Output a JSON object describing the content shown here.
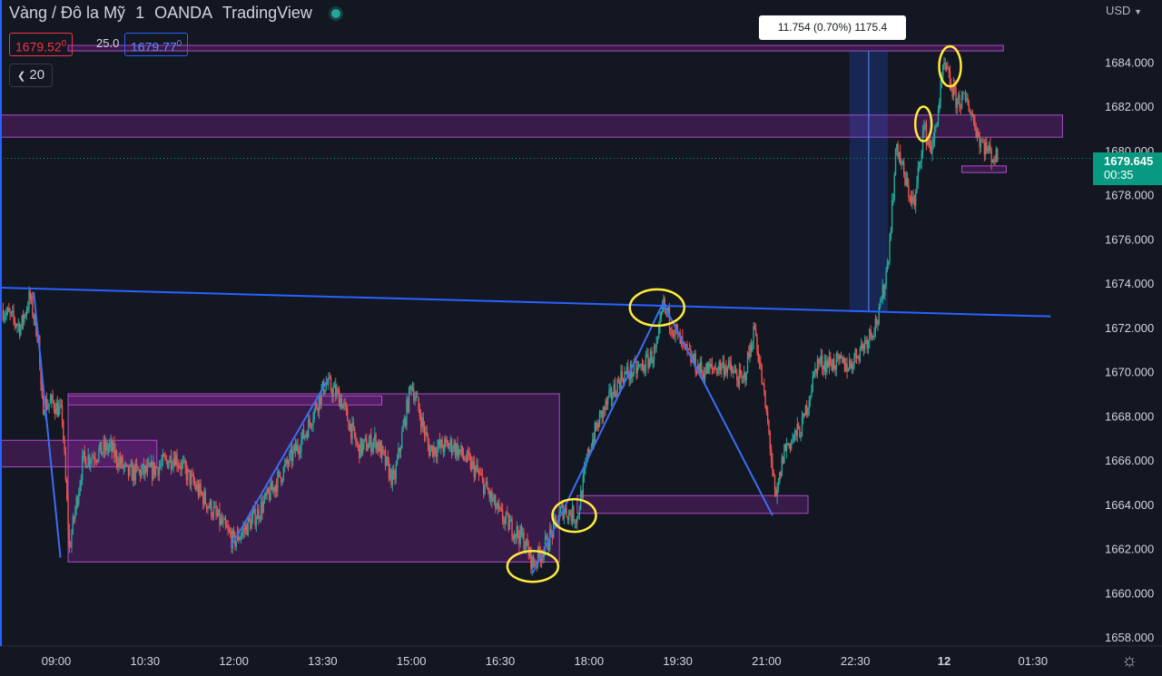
{
  "header": {
    "symbol": "Vàng / Đô la Mỹ",
    "interval": "1",
    "broker": "OANDA",
    "platform": "TradingView",
    "sell_price": "1679.52",
    "sell_sup": "0",
    "spread": "25.0",
    "buy_price": "1679.77",
    "buy_sup": "0",
    "indicator_count": "20"
  },
  "currency": "USD",
  "measure_label": "11.754 (0.70%) 1175.4",
  "last_price": {
    "price": "1679.645",
    "countdown": "00:35"
  },
  "colors": {
    "background": "#131722",
    "up": "#26a69a",
    "down": "#ef5350",
    "trendline": "#2962ff",
    "zone": "#9c27b0",
    "marker": "#ffeb3b",
    "last_price": "#089981"
  },
  "icons": [
    "live-status-icon",
    "settings-gear-icon"
  ],
  "chart_data": {
    "type": "candlestick",
    "ylim": [
      1657.6,
      1686.8
    ],
    "y_ticks": [
      1658,
      1660,
      1662,
      1664,
      1666,
      1668,
      1670,
      1672,
      1674,
      1676,
      1678,
      1680,
      1682,
      1684
    ],
    "y_tick_labels": [
      "1658.000",
      "1660.000",
      "1662.000",
      "1664.000",
      "1666.000",
      "1668.000",
      "1670.000",
      "1672.000",
      "1674.000",
      "1676.000",
      "1678.000",
      "1680.000",
      "1682.000",
      "1684.000"
    ],
    "x_ticks": [
      "09:00",
      "10:30",
      "12:00",
      "13:30",
      "15:00",
      "16:30",
      "18:00",
      "19:30",
      "21:00",
      "22:30",
      "12",
      "01:30"
    ],
    "x_tick_hours": [
      9,
      10.5,
      12,
      13.5,
      15,
      16.5,
      18,
      19.5,
      21,
      22.5,
      24,
      25.5
    ],
    "xlim_hours": [
      8.05,
      26.2
    ],
    "path": [
      [
        8.1,
        1672.8
      ],
      [
        8.4,
        1672.0
      ],
      [
        8.55,
        1673.4
      ],
      [
        8.7,
        1671.5
      ],
      [
        8.75,
        1668.5
      ],
      [
        8.95,
        1668.6
      ],
      [
        9.1,
        1668.0
      ],
      [
        9.22,
        1662.0
      ],
      [
        9.45,
        1666.0
      ],
      [
        9.9,
        1666.6
      ],
      [
        10.2,
        1665.4
      ],
      [
        10.6,
        1665.5
      ],
      [
        11.0,
        1666.2
      ],
      [
        11.3,
        1665.0
      ],
      [
        11.7,
        1663.5
      ],
      [
        12.0,
        1662.3
      ],
      [
        12.4,
        1663.6
      ],
      [
        12.9,
        1665.8
      ],
      [
        13.2,
        1667.2
      ],
      [
        13.55,
        1669.5
      ],
      [
        13.8,
        1668.8
      ],
      [
        14.1,
        1666.5
      ],
      [
        14.4,
        1666.9
      ],
      [
        14.7,
        1665.0
      ],
      [
        15.0,
        1669.5
      ],
      [
        15.3,
        1666.5
      ],
      [
        15.7,
        1666.7
      ],
      [
        16.1,
        1665.5
      ],
      [
        16.5,
        1663.5
      ],
      [
        16.9,
        1662.4
      ],
      [
        17.05,
        1661.3
      ],
      [
        17.3,
        1662.3
      ],
      [
        17.55,
        1663.8
      ],
      [
        17.8,
        1663.4
      ],
      [
        18.0,
        1666.5
      ],
      [
        18.2,
        1668.0
      ],
      [
        18.55,
        1669.8
      ],
      [
        18.9,
        1670.2
      ],
      [
        19.15,
        1671.0
      ],
      [
        19.25,
        1673.0
      ],
      [
        19.6,
        1671.0
      ],
      [
        19.9,
        1670.0
      ],
      [
        20.3,
        1670.3
      ],
      [
        20.6,
        1669.5
      ],
      [
        20.8,
        1672.0
      ],
      [
        20.95,
        1669.0
      ],
      [
        21.05,
        1667.0
      ],
      [
        21.15,
        1664.0
      ],
      [
        21.3,
        1666.5
      ],
      [
        21.6,
        1667.5
      ],
      [
        21.85,
        1670.4
      ],
      [
        22.1,
        1670.4
      ],
      [
        22.4,
        1670.3
      ],
      [
        22.7,
        1671.5
      ],
      [
        22.9,
        1672.5
      ],
      [
        23.05,
        1675.0
      ],
      [
        23.2,
        1680.3
      ],
      [
        23.35,
        1678.5
      ],
      [
        23.5,
        1677.5
      ],
      [
        23.65,
        1681.0
      ],
      [
        23.8,
        1680.0
      ],
      [
        24.0,
        1683.8
      ],
      [
        24.2,
        1682.3
      ],
      [
        24.4,
        1682.2
      ],
      [
        24.6,
        1680.5
      ],
      [
        24.8,
        1679.8
      ],
      [
        24.9,
        1679.6
      ]
    ],
    "trendline_levels": [
      [
        8.05,
        1673.8
      ],
      [
        25.8,
        1672.5
      ]
    ],
    "swing_lines": [
      [
        [
          8.62,
          1673.6
        ],
        [
          9.07,
          1661.6
        ]
      ],
      [
        [
          11.95,
          1662.1
        ],
        [
          13.6,
          1669.7
        ]
      ],
      [
        [
          17.05,
          1660.9
        ],
        [
          19.25,
          1673.1
        ]
      ],
      [
        [
          19.25,
          1673.1
        ],
        [
          21.1,
          1663.5
        ]
      ]
    ],
    "zones": [
      [
        9.2,
        17.5,
        1661.4,
        1669.0
      ],
      [
        8.05,
        10.7,
        1665.7,
        1666.9
      ],
      [
        9.2,
        14.5,
        1668.5,
        1668.9
      ],
      [
        17.8,
        21.7,
        1663.6,
        1664.4
      ],
      [
        8.05,
        26.0,
        1680.6,
        1681.6
      ],
      [
        9.2,
        25.0,
        1684.5,
        1684.75
      ],
      [
        24.3,
        25.05,
        1679.0,
        1679.3
      ]
    ],
    "measure_box": [
      22.4,
      23.05,
      1672.7,
      1684.5
    ],
    "markers": [
      [
        17.75,
        1663.5,
        24,
        18
      ],
      [
        17.05,
        1661.2,
        28,
        17
      ],
      [
        19.15,
        1672.9,
        30,
        20
      ],
      [
        23.65,
        1681.2,
        9,
        19
      ],
      [
        24.1,
        1683.8,
        12,
        22
      ]
    ],
    "last_price_value": 1679.645
  }
}
